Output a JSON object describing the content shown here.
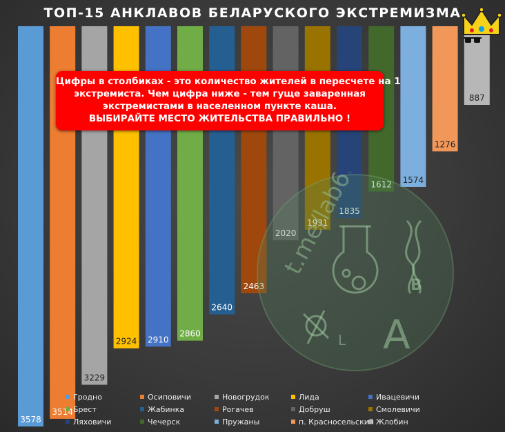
{
  "title": "ТОП-15 АНКЛАВОВ БЕЛАРУСКОГО ЭКСТРЕМИЗМА",
  "note": {
    "line1": "Цифры в столбиках - это количество жителей в пересчете на 1",
    "line2": "экстремиста. Чем цифра ниже - тем гуще заваренная",
    "line3": "экстремистами в населенном пункте каша.",
    "line4": "ВЫБИРАЙТЕ МЕСТО ЖИТЕЛЬСТВА ПРАВИЛЬНО !"
  },
  "watermark": {
    "text": "t.me/lab66",
    "letter_b": "B",
    "letter_a": "A",
    "letter_l": "L"
  },
  "chart_data": {
    "type": "bar",
    "title": "ТОП-15 АНКЛАВОВ БЕЛАРУСКОГО ЭКСТРЕМИЗМА",
    "xlabel": "",
    "ylabel": "",
    "ylim": [
      0,
      3700
    ],
    "grid": false,
    "legend_placement": "bottom",
    "categories": [
      "Гродно",
      "Осиповичи",
      "Новогрудок",
      "Лида",
      "Ивацевичи",
      "Брест",
      "Жабинка",
      "Рогачев",
      "Добруш",
      "Смолевичи",
      "Ляховичи",
      "Чечерск",
      "Пружаны",
      "п. Красносельский",
      "Жлобин"
    ],
    "values": [
      3578,
      3514,
      3229,
      2924,
      2910,
      2860,
      2640,
      2463,
      2020,
      1931,
      1835,
      1612,
      1574,
      1276,
      887
    ],
    "colors": [
      "#5b9bd5",
      "#ed7d31",
      "#a5a5a5",
      "#ffc000",
      "#4472c4",
      "#70ad47",
      "#255e91",
      "#9e480e",
      "#636363",
      "#997300",
      "#264478",
      "#43682b",
      "#7cafdd",
      "#f1975a",
      "#b7b7b7"
    ]
  }
}
